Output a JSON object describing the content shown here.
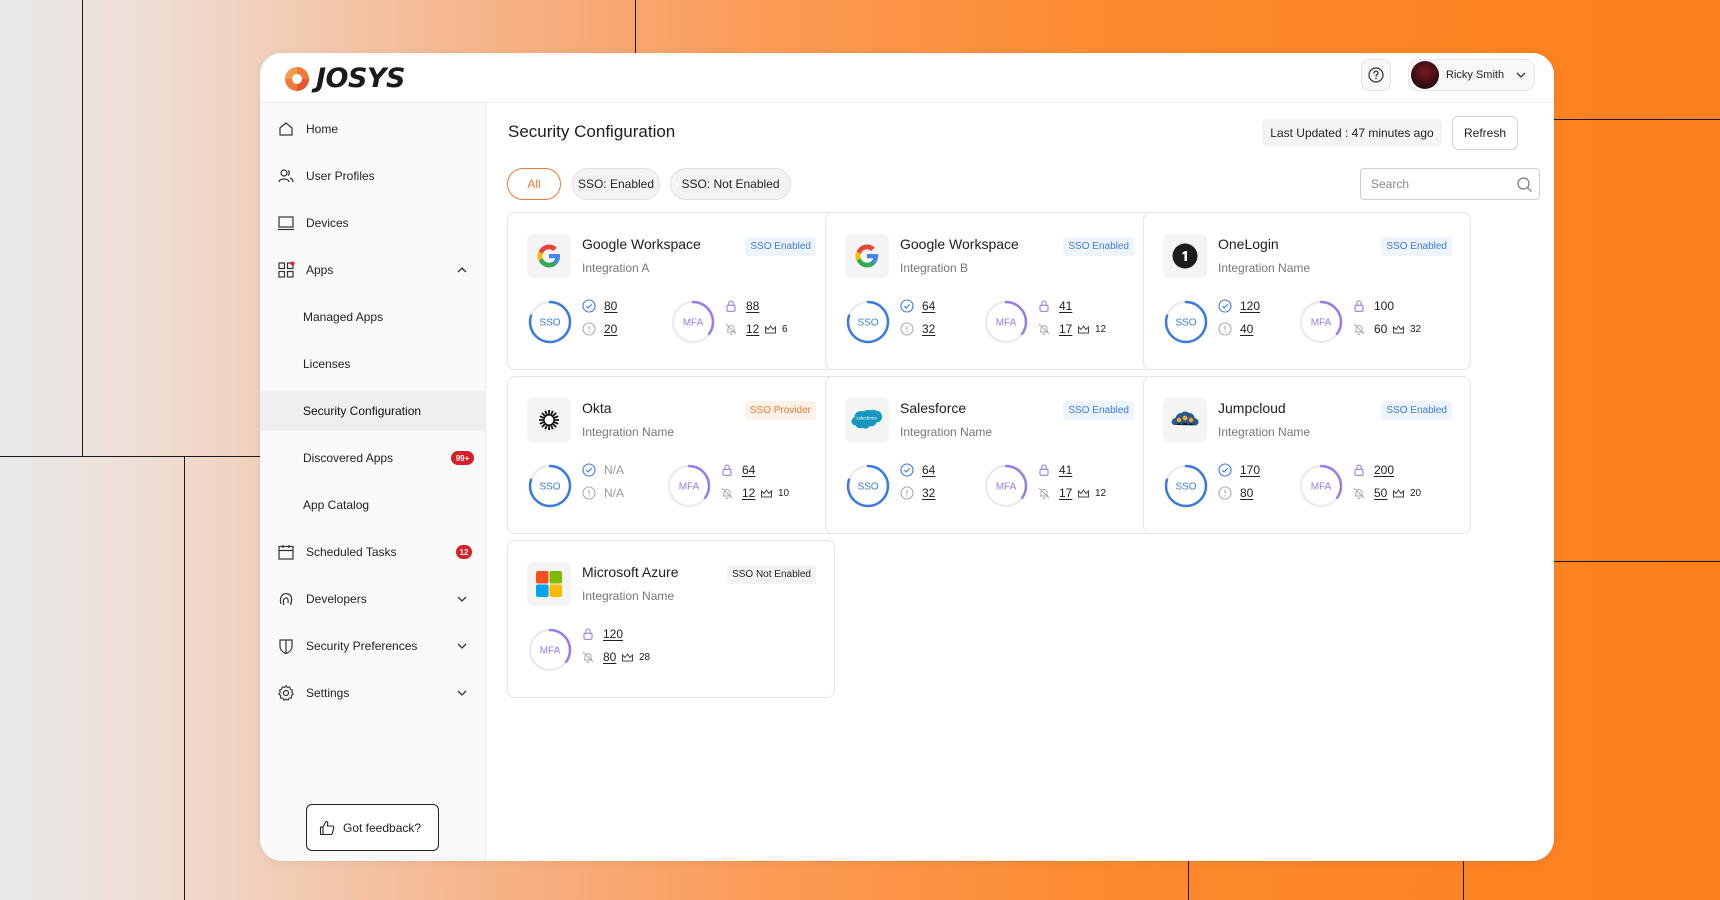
{
  "brand": {
    "name": "JOSYS"
  },
  "header": {
    "help_icon": "help-circle-icon",
    "user_name": "Ricky Smith"
  },
  "sidebar": {
    "items": [
      {
        "label": "Home",
        "icon": "home-icon"
      },
      {
        "label": "User Profiles",
        "icon": "users-icon"
      },
      {
        "label": "Devices",
        "icon": "laptop-icon"
      },
      {
        "label": "Apps",
        "icon": "apps-grid-icon",
        "expanded": true
      },
      {
        "label": "Managed Apps"
      },
      {
        "label": "Licenses"
      },
      {
        "label": "Security Configuration",
        "active": true
      },
      {
        "label": "Discovered Apps",
        "badge": "99+"
      },
      {
        "label": "App Catalog"
      },
      {
        "label": "Scheduled Tasks",
        "icon": "calendar-icon",
        "badge": "12"
      },
      {
        "label": "Developers",
        "icon": "fingerprint-icon"
      },
      {
        "label": "Security Preferences",
        "icon": "shield-icon"
      },
      {
        "label": "Settings",
        "icon": "gear-icon"
      }
    ],
    "feedback_label": "Got feedback?"
  },
  "main": {
    "title": "Security Configuration",
    "last_updated": "Last Updated : 47 minutes ago",
    "refresh_label": "Refresh",
    "filters": [
      {
        "label": "All",
        "active": true
      },
      {
        "label": "SSO: Enabled"
      },
      {
        "label": "SSO: Not Enabled"
      }
    ],
    "search": {
      "placeholder": "Search",
      "value": ""
    }
  },
  "cards": [
    {
      "name": "Google Workspace",
      "sub": "Integration A",
      "sso_status": "SSO Enabled",
      "sso_ok": "80",
      "sso_warn": "20",
      "mfa_on": "88",
      "mfa_off": "12",
      "licenses": "6"
    },
    {
      "name": "Google Workspace",
      "sub": "Integration B",
      "sso_status": "SSO Enabled",
      "sso_ok": "64",
      "sso_warn": "32",
      "mfa_on": "41",
      "mfa_off": "17",
      "licenses": "12"
    },
    {
      "name": "OneLogin",
      "sub": "Integration Name",
      "sso_status": "SSO Enabled",
      "sso_ok": "120",
      "sso_warn": "40",
      "mfa_on": "100",
      "mfa_off": "60",
      "licenses": "32"
    },
    {
      "name": "Okta",
      "sub": "Integration Name",
      "sso_status": "SSO Provider",
      "sso_ok": "N/A",
      "sso_warn": "N/A",
      "mfa_on": "64",
      "mfa_off": "12",
      "licenses": "10"
    },
    {
      "name": "Salesforce",
      "sub": "Integration Name",
      "sso_status": "SSO Enabled",
      "sso_ok": "64",
      "sso_warn": "32",
      "mfa_on": "41",
      "mfa_off": "17",
      "licenses": "12",
      "logo_text": "salesforce"
    },
    {
      "name": "Jumpcloud",
      "sub": "Integration Name",
      "sso_status": "SSO Enabled",
      "sso_ok": "170",
      "sso_warn": "80",
      "mfa_on": "200",
      "mfa_off": "50",
      "licenses": "20"
    },
    {
      "name": "Microsoft Azure",
      "sub": "Integration Name",
      "sso_status": "SSO Not Enabled",
      "mfa_on": "120",
      "mfa_off": "80",
      "licenses": "28"
    }
  ],
  "ring_labels": {
    "sso": "SSO",
    "mfa": "MFA"
  },
  "colors": {
    "accent_orange": "#f07b35",
    "sso_blue": "#3b7be0",
    "mfa_purple": "#9b7be6",
    "badge_red": "#d72029"
  }
}
